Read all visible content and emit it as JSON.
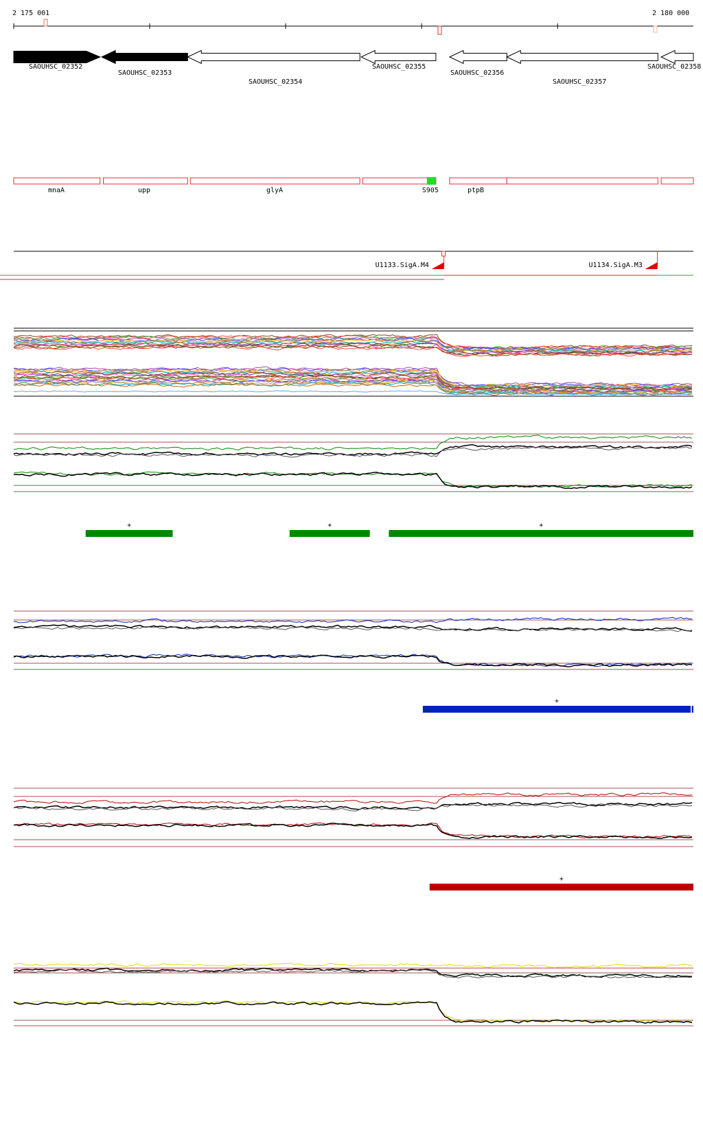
{
  "ruler": {
    "start_label": "2 175 001",
    "end_label": "2 180 000",
    "start_bp": 2175001,
    "end_bp": 2180000
  },
  "colors": {
    "forward_gene": "#000000",
    "reverse_gene": "#ffffff",
    "operon_outline": "#e03030",
    "operon_marker": "#22dd22",
    "track_green": "#008800",
    "track_blue": "#0022bb",
    "track_red": "#bb0000",
    "track_yellow": "#dddd00",
    "baseline": "#a05050"
  },
  "genes": [
    {
      "id": "SAOUHSC_02352",
      "start": 2175001,
      "end": 2175636,
      "strand": "+",
      "filled": true
    },
    {
      "id": "SAOUHSC_02353",
      "start": 2175648,
      "end": 2176280,
      "strand": "-",
      "filled": true
    },
    {
      "id": "SAOUHSC_02354",
      "start": 2176280,
      "end": 2177547,
      "strand": "-",
      "filled": false
    },
    {
      "id": "SAOUHSC_02355",
      "start": 2177557,
      "end": 2178106,
      "strand": "-",
      "filled": false
    },
    {
      "id": "SAOUHSC_02356",
      "start": 2178207,
      "end": 2178628,
      "strand": "-",
      "filled": false
    },
    {
      "id": "SAOUHSC_02357",
      "start": 2178628,
      "end": 2179739,
      "strand": "-",
      "filled": false
    },
    {
      "id": "SAOUHSC_02358",
      "start": 2179763,
      "end": 2180000,
      "strand": "-",
      "filled": false
    }
  ],
  "operons": [
    {
      "name": "mnaA",
      "start": 2175001,
      "end": 2175636
    },
    {
      "name": "upp",
      "start": 2175660,
      "end": 2176280
    },
    {
      "name": "glyA",
      "start": 2176300,
      "end": 2177547
    },
    {
      "name": "",
      "start": 2177567,
      "end": 2178106
    },
    {
      "name": "ptpB",
      "start": 2178207,
      "end": 2178628
    },
    {
      "name": "",
      "start": 2178628,
      "end": 2179739
    },
    {
      "name": "",
      "start": 2179763,
      "end": 2180000
    }
  ],
  "marker": {
    "name": "S905",
    "position": 2178040
  },
  "promoters": [
    {
      "name": "U1133.SigA.M4",
      "position": 2178165
    },
    {
      "name": "U1134.SigA.M3",
      "position": 2179735
    }
  ],
  "transcripts": [
    {
      "color": "#22aa22",
      "start": 2174900,
      "end": 2180000,
      "row": 0
    },
    {
      "color": "#dd2222",
      "start": 2174900,
      "end": 2178165,
      "row": 1
    },
    {
      "color": "#dd2222",
      "start": 2178165,
      "end": 2179735,
      "row": 0
    }
  ],
  "segments": {
    "green": [
      {
        "label": "+",
        "start": 2175530,
        "end": 2176170
      },
      {
        "label": "+",
        "start": 2177030,
        "end": 2177620
      },
      {
        "label": "+",
        "start": 2177760,
        "end": 2180000
      }
    ],
    "blue": [
      {
        "label": "+",
        "start": 2178010,
        "end": 2179980
      },
      {
        "label": "",
        "start": 2179988,
        "end": 2180000
      }
    ],
    "red": [
      {
        "label": "+",
        "start": 2178060,
        "end": 2180000
      }
    ]
  }
}
